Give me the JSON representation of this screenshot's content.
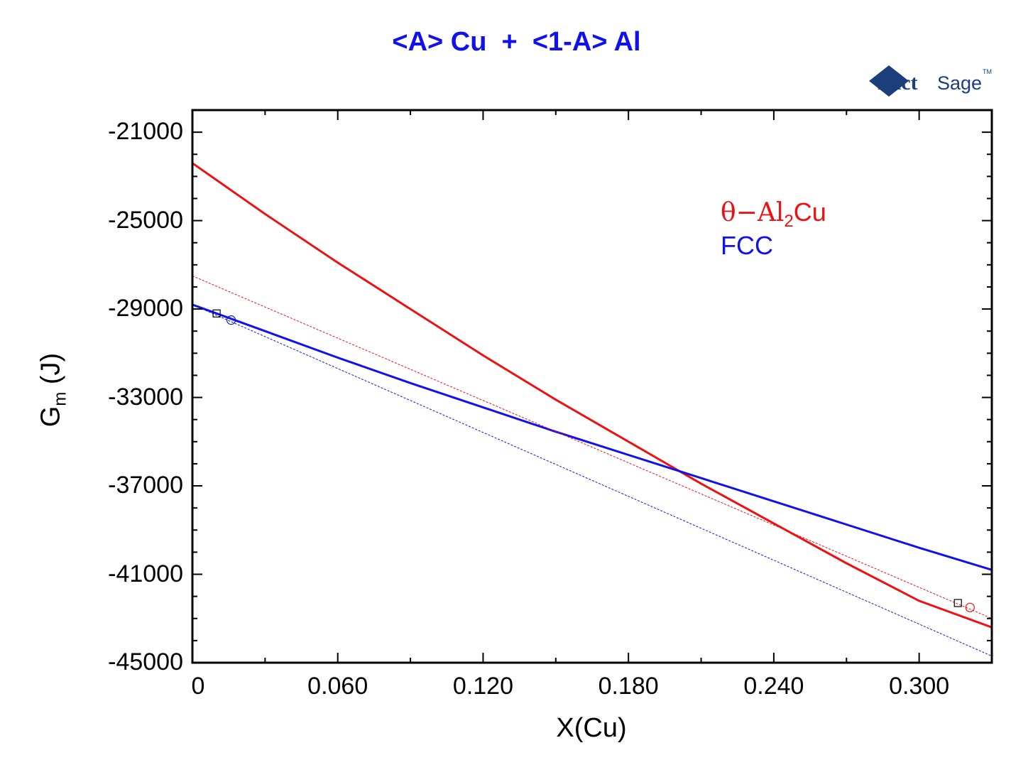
{
  "title": "<A> Cu  +  <1-A> Al",
  "logo": {
    "text_main": "Fact",
    "text_sage": "Sage",
    "tm": "TM"
  },
  "colors": {
    "title": "#1111ee",
    "red": "#ee1111",
    "blue": "#1111ee",
    "axis": "#000000"
  },
  "chart_data": {
    "type": "line",
    "xlabel_main": "X(Cu)",
    "ylabel_main": "G",
    "ylabel_sub": "m",
    "ylabel_unit": "(J)",
    "xlim": [
      0,
      0.33
    ],
    "ylim": [
      -45000,
      -20000
    ],
    "x_ticks": [
      0,
      0.06,
      0.12,
      0.18,
      0.24,
      0.3
    ],
    "x_tick_labels": [
      "0",
      "0.060",
      "0.120",
      "0.180",
      "0.240",
      "0.300"
    ],
    "y_ticks": [
      -21000,
      -25000,
      -29000,
      -33000,
      -37000,
      -41000,
      -45000
    ],
    "y_tick_labels": [
      "-21000",
      "-25000",
      "-29000",
      "-33000",
      "-37000",
      "-41000",
      "-45000"
    ],
    "legend": [
      {
        "prefix": "θ−Al",
        "sub": "2",
        "suffix": "Cu",
        "color": "#ee1111"
      },
      {
        "prefix": "FCC",
        "sub": "",
        "suffix": "",
        "color": "#1111ee"
      }
    ],
    "series": [
      {
        "color": "#ee1111",
        "style": "solid",
        "x": [
          0,
          0.03,
          0.06,
          0.09,
          0.12,
          0.15,
          0.18,
          0.21,
          0.24,
          0.27,
          0.3,
          0.33
        ],
        "y": [
          -22400,
          -24700,
          -26900,
          -29000,
          -31100,
          -33100,
          -35000,
          -36900,
          -38700,
          -40500,
          -42200,
          -43400
        ]
      },
      {
        "color": "#1111ee",
        "style": "solid",
        "x": [
          0,
          0.03,
          0.06,
          0.09,
          0.12,
          0.15,
          0.18,
          0.21,
          0.24,
          0.27,
          0.3,
          0.33
        ],
        "y": [
          -28800,
          -30000,
          -31200,
          -32350,
          -33450,
          -34550,
          -35600,
          -36650,
          -37700,
          -38750,
          -39800,
          -40800
        ]
      },
      {
        "color": "#ee1111",
        "style": "dashed",
        "x": [
          0,
          0.33
        ],
        "y": [
          -27500,
          -43000
        ]
      },
      {
        "color": "#1111ee",
        "style": "dashed",
        "x": [
          0,
          0.33
        ],
        "y": [
          -28800,
          -44700
        ]
      }
    ],
    "markers": [
      {
        "shape": "square",
        "color": "#000000",
        "x": 0.01,
        "y": -29200
      },
      {
        "shape": "circle",
        "color": "#1111ee",
        "x": 0.016,
        "y": -29500
      },
      {
        "shape": "square",
        "color": "#000000",
        "x": 0.316,
        "y": -42300
      },
      {
        "shape": "circle",
        "color": "#ee1111",
        "x": 0.321,
        "y": -42500
      }
    ]
  }
}
